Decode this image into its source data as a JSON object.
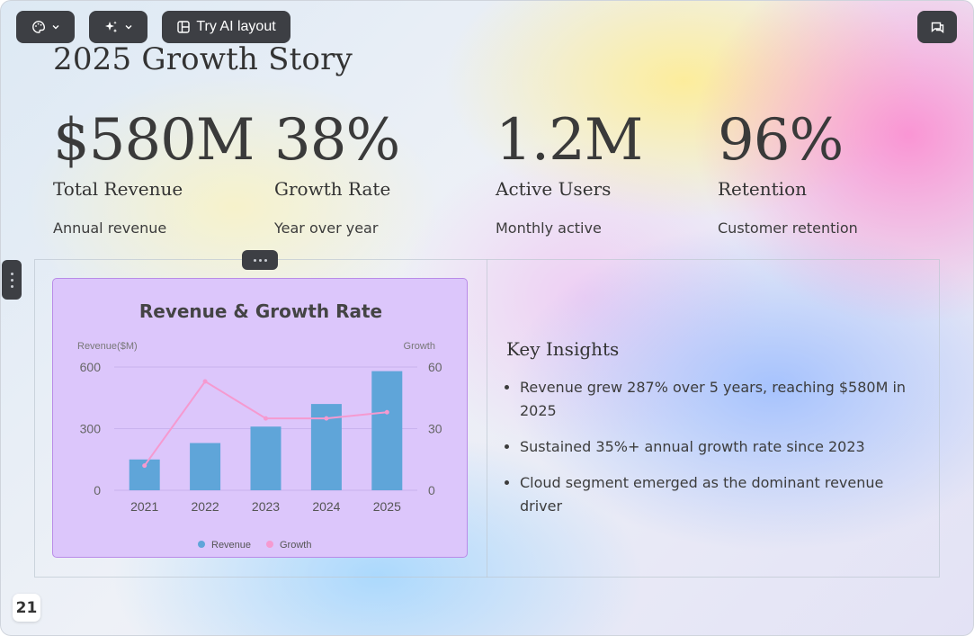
{
  "toolbar": {
    "theme_icon": "palette-icon",
    "ai_icon": "sparkles-icon",
    "layout_icon": "layout-icon",
    "try_ai_layout_label": "Try AI layout",
    "comments_icon": "comments-icon"
  },
  "slide": {
    "title": "2025 Growth Story",
    "stats": [
      {
        "value": "$580M",
        "label": "Total Revenue",
        "sub": "Annual revenue"
      },
      {
        "value": "38%",
        "label": "Growth Rate",
        "sub": "Year over year"
      },
      {
        "value": "1.2M",
        "label": "Active Users",
        "sub": "Monthly active"
      },
      {
        "value": "96%",
        "label": "Retention",
        "sub": "Customer retention"
      }
    ],
    "insights": {
      "title": "Key Insights",
      "items": [
        "Revenue grew 287% over 5 years, reaching $580M in 2025",
        "Sustained 35%+ annual growth rate since 2023",
        "Cloud segment emerged as the dominant revenue driver"
      ]
    },
    "page_number": "21"
  },
  "colors": {
    "toolbar_bg": "#3d3f44",
    "chart_bg": "#dcc6fb",
    "bar": "#5fa5d9",
    "line": "#f59ad0",
    "text": "#333333"
  },
  "chart_data": {
    "type": "bar",
    "title": "Revenue & Growth Rate",
    "categories": [
      "2021",
      "2022",
      "2023",
      "2024",
      "2025"
    ],
    "series": [
      {
        "name": "Revenue",
        "type": "bar",
        "axis": "left",
        "values": [
          150,
          230,
          310,
          420,
          580
        ]
      },
      {
        "name": "Growth",
        "type": "line",
        "axis": "right",
        "values": [
          12,
          53,
          35,
          35,
          38
        ]
      }
    ],
    "y_left": {
      "label": "Revenue($M)",
      "range": [
        0,
        600
      ],
      "ticks": [
        "0",
        "300",
        "600"
      ]
    },
    "y_right": {
      "label": "Growth",
      "range": [
        0,
        60
      ],
      "ticks": [
        "0",
        "30",
        "60"
      ]
    },
    "legend_position": "bottom-center",
    "grid": true
  }
}
